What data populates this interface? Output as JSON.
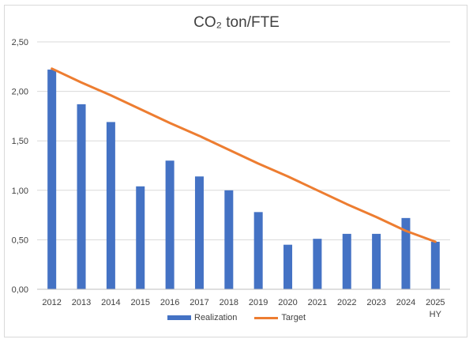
{
  "chart_data": {
    "type": "bar",
    "title": "CO₂ ton/FTE",
    "categories": [
      "2012",
      "2013",
      "2014",
      "2015",
      "2016",
      "2017",
      "2018",
      "2019",
      "2020",
      "2021",
      "2022",
      "2023",
      "2024",
      "2025"
    ],
    "category_sublabels": [
      "",
      "",
      "",
      "",
      "",
      "",
      "",
      "",
      "",
      "",
      "",
      "",
      "",
      "HY"
    ],
    "ylim": [
      0,
      2.5
    ],
    "yticks": [
      "0,00",
      "0,50",
      "1,00",
      "1,50",
      "2,00",
      "2,50"
    ],
    "grid": true,
    "legend_position": "bottom",
    "series": [
      {
        "name": "Realization",
        "type": "bar",
        "color": "#4472C4",
        "values": [
          2.22,
          1.87,
          1.69,
          1.04,
          1.3,
          1.14,
          1.0,
          0.78,
          0.45,
          0.51,
          0.56,
          0.56,
          0.72,
          0.48
        ]
      },
      {
        "name": "Target",
        "type": "line",
        "color": "#ED7D31",
        "values": [
          2.23,
          2.09,
          1.96,
          1.82,
          1.68,
          1.55,
          1.41,
          1.27,
          1.14,
          1.0,
          0.86,
          0.73,
          0.59,
          0.48
        ]
      }
    ]
  }
}
